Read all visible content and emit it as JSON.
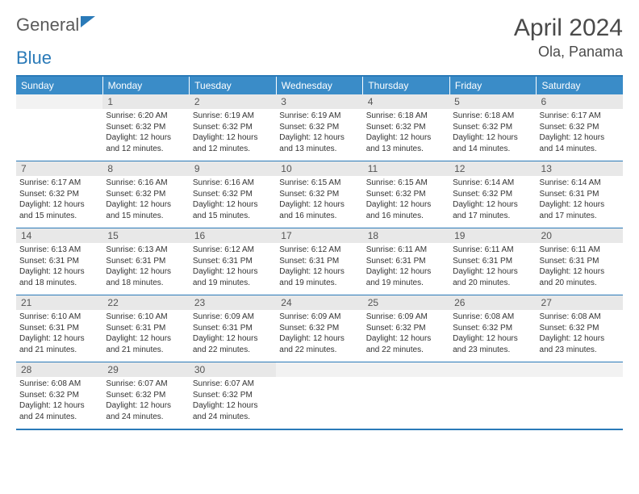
{
  "logo": {
    "part1": "General",
    "part2": "Blue"
  },
  "title": "April 2024",
  "location": "Ola, Panama",
  "colors": {
    "accent": "#2a7ab8",
    "header_bg": "#3a8cc8",
    "daynum_bg": "#e8e8e8",
    "text": "#333333"
  },
  "days_of_week": [
    "Sunday",
    "Monday",
    "Tuesday",
    "Wednesday",
    "Thursday",
    "Friday",
    "Saturday"
  ],
  "weeks": [
    [
      null,
      {
        "n": "1",
        "sr": "6:20 AM",
        "ss": "6:32 PM",
        "dl": "12 hours and 12 minutes."
      },
      {
        "n": "2",
        "sr": "6:19 AM",
        "ss": "6:32 PM",
        "dl": "12 hours and 12 minutes."
      },
      {
        "n": "3",
        "sr": "6:19 AM",
        "ss": "6:32 PM",
        "dl": "12 hours and 13 minutes."
      },
      {
        "n": "4",
        "sr": "6:18 AM",
        "ss": "6:32 PM",
        "dl": "12 hours and 13 minutes."
      },
      {
        "n": "5",
        "sr": "6:18 AM",
        "ss": "6:32 PM",
        "dl": "12 hours and 14 minutes."
      },
      {
        "n": "6",
        "sr": "6:17 AM",
        "ss": "6:32 PM",
        "dl": "12 hours and 14 minutes."
      }
    ],
    [
      {
        "n": "7",
        "sr": "6:17 AM",
        "ss": "6:32 PM",
        "dl": "12 hours and 15 minutes."
      },
      {
        "n": "8",
        "sr": "6:16 AM",
        "ss": "6:32 PM",
        "dl": "12 hours and 15 minutes."
      },
      {
        "n": "9",
        "sr": "6:16 AM",
        "ss": "6:32 PM",
        "dl": "12 hours and 15 minutes."
      },
      {
        "n": "10",
        "sr": "6:15 AM",
        "ss": "6:32 PM",
        "dl": "12 hours and 16 minutes."
      },
      {
        "n": "11",
        "sr": "6:15 AM",
        "ss": "6:32 PM",
        "dl": "12 hours and 16 minutes."
      },
      {
        "n": "12",
        "sr": "6:14 AM",
        "ss": "6:32 PM",
        "dl": "12 hours and 17 minutes."
      },
      {
        "n": "13",
        "sr": "6:14 AM",
        "ss": "6:31 PM",
        "dl": "12 hours and 17 minutes."
      }
    ],
    [
      {
        "n": "14",
        "sr": "6:13 AM",
        "ss": "6:31 PM",
        "dl": "12 hours and 18 minutes."
      },
      {
        "n": "15",
        "sr": "6:13 AM",
        "ss": "6:31 PM",
        "dl": "12 hours and 18 minutes."
      },
      {
        "n": "16",
        "sr": "6:12 AM",
        "ss": "6:31 PM",
        "dl": "12 hours and 19 minutes."
      },
      {
        "n": "17",
        "sr": "6:12 AM",
        "ss": "6:31 PM",
        "dl": "12 hours and 19 minutes."
      },
      {
        "n": "18",
        "sr": "6:11 AM",
        "ss": "6:31 PM",
        "dl": "12 hours and 19 minutes."
      },
      {
        "n": "19",
        "sr": "6:11 AM",
        "ss": "6:31 PM",
        "dl": "12 hours and 20 minutes."
      },
      {
        "n": "20",
        "sr": "6:11 AM",
        "ss": "6:31 PM",
        "dl": "12 hours and 20 minutes."
      }
    ],
    [
      {
        "n": "21",
        "sr": "6:10 AM",
        "ss": "6:31 PM",
        "dl": "12 hours and 21 minutes."
      },
      {
        "n": "22",
        "sr": "6:10 AM",
        "ss": "6:31 PM",
        "dl": "12 hours and 21 minutes."
      },
      {
        "n": "23",
        "sr": "6:09 AM",
        "ss": "6:31 PM",
        "dl": "12 hours and 22 minutes."
      },
      {
        "n": "24",
        "sr": "6:09 AM",
        "ss": "6:32 PM",
        "dl": "12 hours and 22 minutes."
      },
      {
        "n": "25",
        "sr": "6:09 AM",
        "ss": "6:32 PM",
        "dl": "12 hours and 22 minutes."
      },
      {
        "n": "26",
        "sr": "6:08 AM",
        "ss": "6:32 PM",
        "dl": "12 hours and 23 minutes."
      },
      {
        "n": "27",
        "sr": "6:08 AM",
        "ss": "6:32 PM",
        "dl": "12 hours and 23 minutes."
      }
    ],
    [
      {
        "n": "28",
        "sr": "6:08 AM",
        "ss": "6:32 PM",
        "dl": "12 hours and 24 minutes."
      },
      {
        "n": "29",
        "sr": "6:07 AM",
        "ss": "6:32 PM",
        "dl": "12 hours and 24 minutes."
      },
      {
        "n": "30",
        "sr": "6:07 AM",
        "ss": "6:32 PM",
        "dl": "12 hours and 24 minutes."
      },
      null,
      null,
      null,
      null
    ]
  ],
  "labels": {
    "sunrise": "Sunrise:",
    "sunset": "Sunset:",
    "daylight": "Daylight:"
  }
}
